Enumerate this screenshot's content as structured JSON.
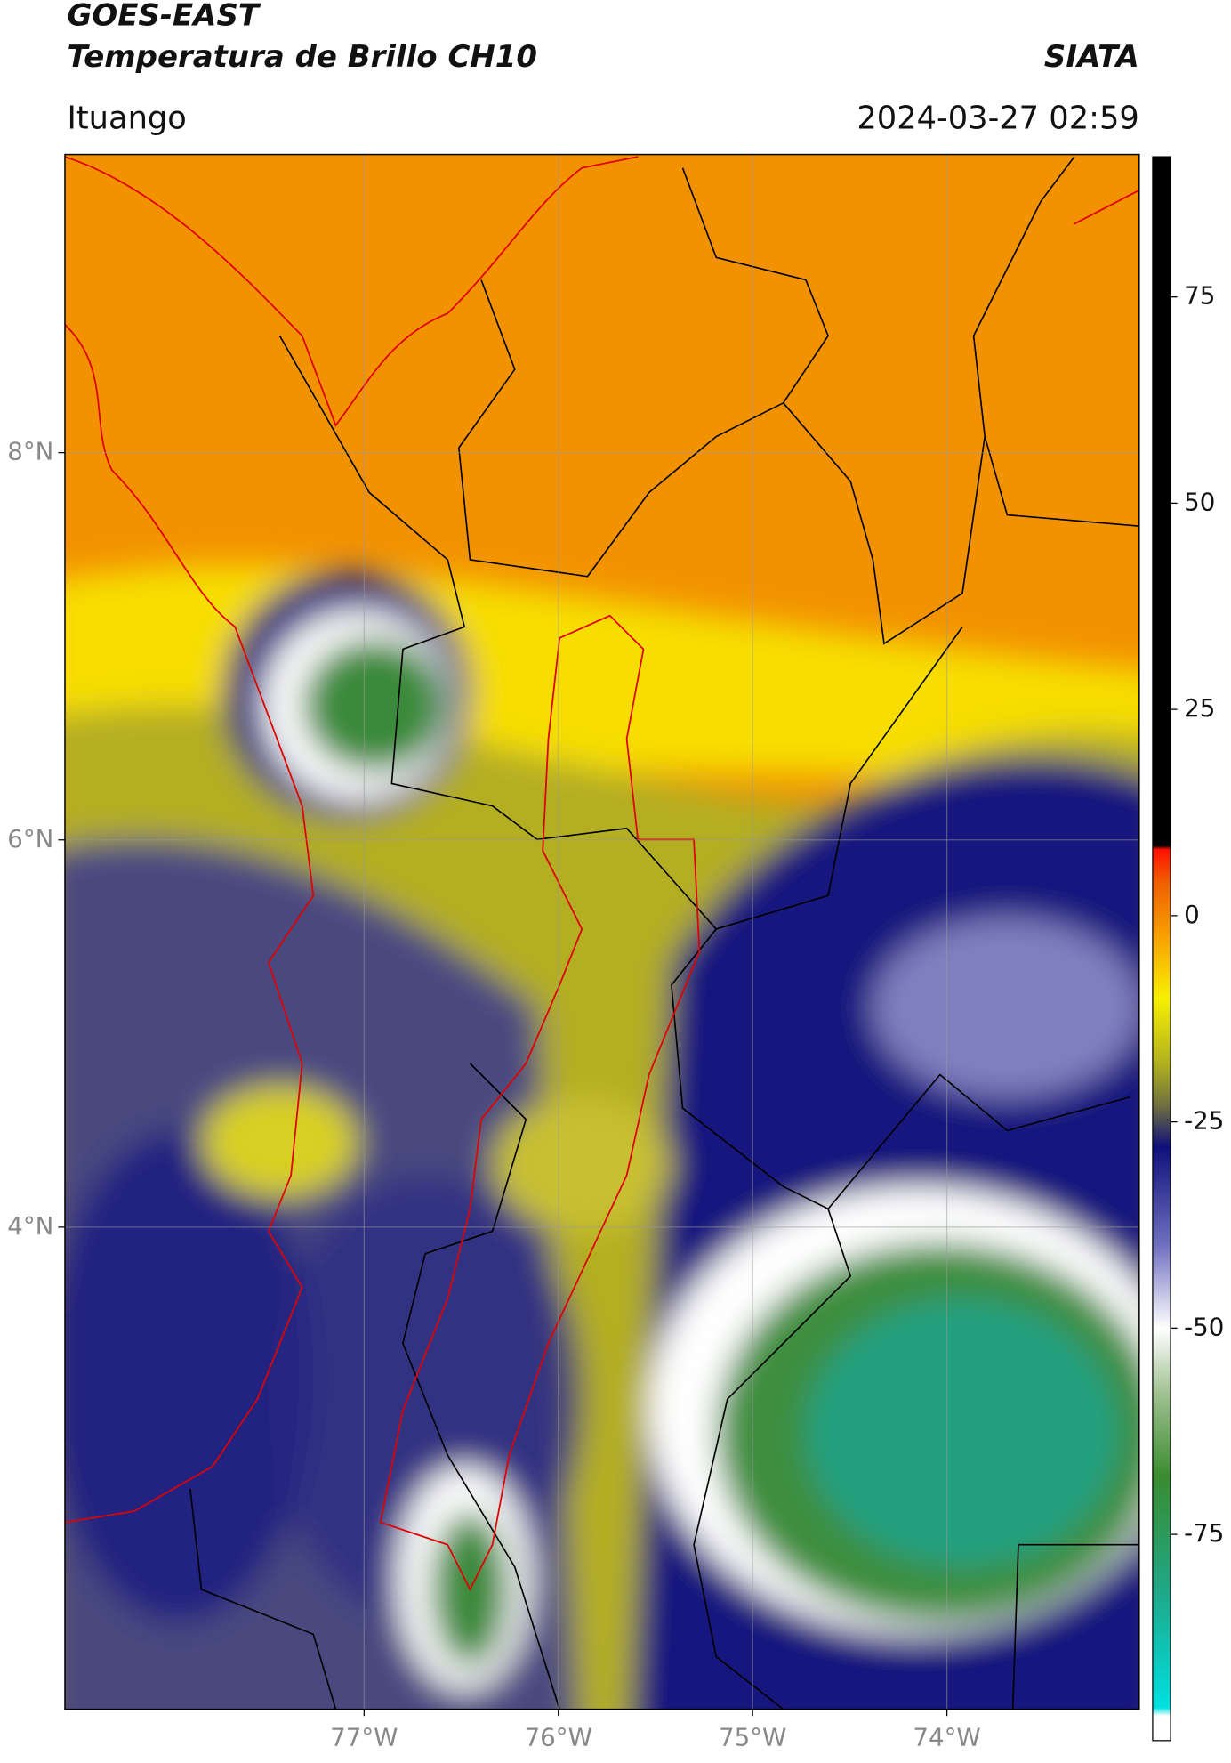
{
  "header": {
    "title": "GOES-EAST",
    "subtitle": "Temperatura de Brillo CH10",
    "source": "SIATA",
    "location": "Ituango",
    "datetime": "2024-03-27 02:59"
  },
  "map": {
    "xlim": [
      -78.54,
      -73.01
    ],
    "ylim": [
      1.51,
      9.54
    ],
    "xticks": [
      {
        "value": -77,
        "label": "77°W"
      },
      {
        "value": -76,
        "label": "76°W"
      },
      {
        "value": -75,
        "label": "75°W"
      },
      {
        "value": -74,
        "label": "74°W"
      }
    ],
    "yticks": [
      {
        "value": 8,
        "label": "8°N"
      },
      {
        "value": 6,
        "label": "6°N"
      },
      {
        "value": 4,
        "label": "4°N"
      }
    ],
    "grid": true
  },
  "colorbar": {
    "range": [
      -100,
      92
    ],
    "ticks": [
      75,
      50,
      25,
      0,
      -25,
      -50,
      -75
    ],
    "stops": [
      {
        "value": -100,
        "color": "#ffffff"
      },
      {
        "value": -97,
        "color": "#ffffff"
      },
      {
        "value": -96,
        "color": "#00e0e0"
      },
      {
        "value": -82,
        "color": "#1fa888"
      },
      {
        "value": -68,
        "color": "#3a8c30"
      },
      {
        "value": -58,
        "color": "#a0c090"
      },
      {
        "value": -50,
        "color": "#ffffff"
      },
      {
        "value": -40,
        "color": "#7070c0"
      },
      {
        "value": -28,
        "color": "#10107a"
      },
      {
        "value": -23,
        "color": "#707040"
      },
      {
        "value": -18,
        "color": "#b0b020"
      },
      {
        "value": -10,
        "color": "#f8f000"
      },
      {
        "value": -4,
        "color": "#f8b000"
      },
      {
        "value": 4,
        "color": "#f06000"
      },
      {
        "value": 8,
        "color": "#ff1000"
      },
      {
        "value": 8.5,
        "color": "#000000"
      },
      {
        "value": 92,
        "color": "#000000"
      }
    ]
  }
}
